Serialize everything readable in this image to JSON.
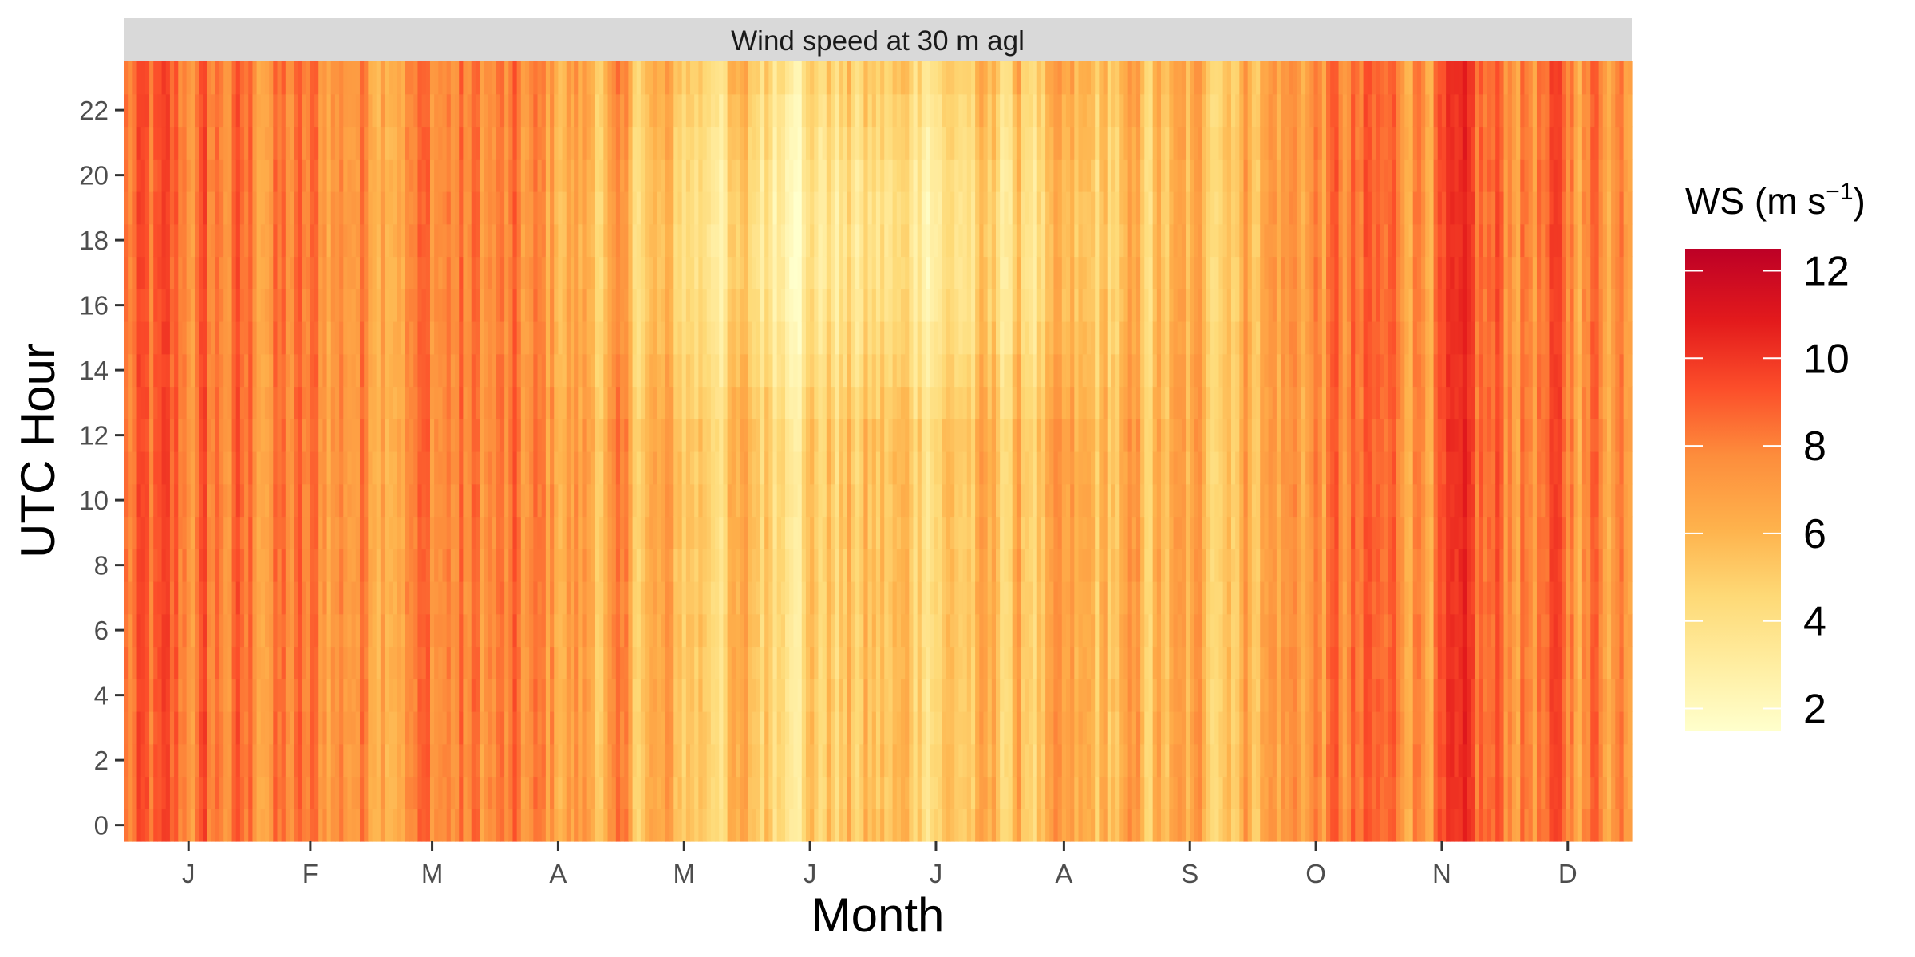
{
  "chart_data": {
    "type": "heatmap",
    "panel_title": "Wind speed at 30 m agl",
    "xlabel": "Month",
    "ylabel": "UTC Hour",
    "x_tick_labels": [
      "J",
      "F",
      "M",
      "A",
      "M",
      "J",
      "J",
      "A",
      "S",
      "O",
      "N",
      "D"
    ],
    "y_ticks": [
      0,
      2,
      4,
      6,
      8,
      10,
      12,
      14,
      16,
      18,
      20,
      22
    ],
    "y_tick_labels": [
      "0",
      "2",
      "4",
      "6",
      "8",
      "10",
      "12",
      "14",
      "16",
      "18",
      "20",
      "22"
    ],
    "x_range_days": [
      1,
      365
    ],
    "y_range_hours": [
      0,
      23
    ],
    "legend": {
      "title": "WS (m s",
      "title_superscript": "−1",
      "title_close": ")",
      "placement": "right",
      "range": [
        1.5,
        12.5
      ],
      "ticks": [
        2,
        4,
        6,
        8,
        10,
        12
      ],
      "tick_labels": [
        "2",
        "4",
        "6",
        "8",
        "10",
        "12"
      ],
      "colormap": "YlOrRd",
      "color_stops": [
        "#ffffcc",
        "#ffeda0",
        "#fed976",
        "#feb24c",
        "#fd8d3c",
        "#fc4e2a",
        "#e31a1c",
        "#bd0026"
      ]
    },
    "monthly_mean_ws": [
      8.2,
      7.6,
      7.9,
      7.0,
      5.6,
      5.2,
      5.4,
      5.6,
      6.0,
      7.6,
      8.4,
      8.0
    ],
    "diurnal_pattern": "higher wind speeds during 00-12 UTC in warm months, lowest around 14-20 UTC in May-August"
  },
  "colors": {
    "strip_background": "#d9d9d9",
    "tick_color": "#333333"
  }
}
